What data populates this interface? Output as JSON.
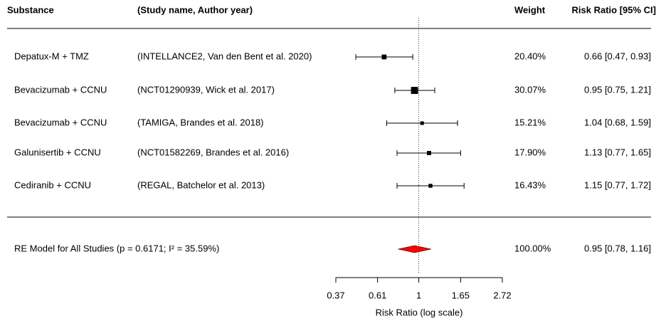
{
  "chart_data": {
    "type": "forest",
    "headers": [
      "Substance",
      "(Study name, Author year)",
      "Weight",
      "Risk Ratio [95% CI]"
    ],
    "categories": [
      "Depatux-M + TMZ",
      "Bevacizumab + CCNU",
      "Bevacizumab + CCNU",
      "Galunisertib + CCNU",
      "Cediranib + CCNU"
    ],
    "studies": [
      "(INTELLANCE2, Van den Bent et al. 2020)",
      "(NCT01290939, Wick et al. 2017)",
      "(TAMIGA, Brandes et al. 2018)",
      "(NCT01582269, Brandes   et al. 2016)",
      "(REGAL, Batchelor et al. 2013)"
    ],
    "values": [
      0.66,
      0.95,
      1.04,
      1.13,
      1.15
    ],
    "lower": [
      0.47,
      0.75,
      0.68,
      0.77,
      0.77
    ],
    "upper": [
      0.93,
      1.21,
      1.59,
      1.65,
      1.72
    ],
    "value_labels": [
      "0.66 [0.47, 0.93]",
      "0.95 [0.75, 1.21]",
      "1.04 [0.68, 1.59]",
      "1.13 [0.77, 1.65]",
      "1.15 [0.77, 1.72]"
    ],
    "weights": [
      20.4,
      30.07,
      15.21,
      17.9,
      16.43
    ],
    "weight_labels": [
      "20.40%",
      "30.07%",
      "15.21%",
      "17.90%",
      "16.43%"
    ],
    "summary": {
      "label": "RE Model for All Studies (p = 0.6171; I² = 35.59%)",
      "value": 0.95,
      "lower": 0.78,
      "upper": 1.16,
      "value_label": "0.95 [0.78, 1.16]",
      "weight": 100.0,
      "weight_label": "100.00%",
      "color": "#ff0000"
    },
    "reference": 1,
    "xlim": [
      0.37,
      2.72
    ],
    "xticks": [
      0.37,
      0.61,
      1,
      1.65,
      2.72
    ],
    "log_scale": true,
    "xlabel": "Risk Ratio (log scale)",
    "color": "#000000"
  }
}
